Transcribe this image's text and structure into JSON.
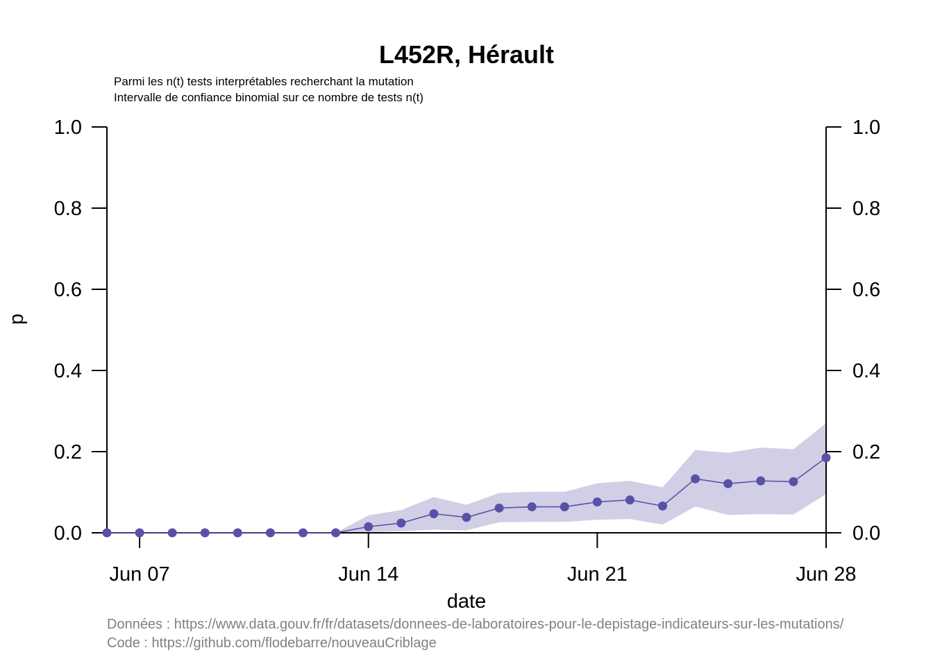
{
  "chart_data": {
    "type": "line",
    "title": "L452R, Hérault",
    "subtitle_lines": [
      "Parmi les n(t) tests interprétables recherchant la mutation",
      "Intervalle de confiance binomial sur ce nombre de tests n(t)"
    ],
    "xlabel": "date",
    "ylabel": "p",
    "ylim": [
      0,
      1
    ],
    "y_ticks": [
      "0.0",
      "0.2",
      "0.4",
      "0.6",
      "0.8",
      "1.0"
    ],
    "x_range": [
      "2021-06-06",
      "2021-06-28"
    ],
    "x_ticks": [
      {
        "date": "2021-06-07",
        "label": "Jun 07"
      },
      {
        "date": "2021-06-14",
        "label": "Jun 14"
      },
      {
        "date": "2021-06-21",
        "label": "Jun 21"
      },
      {
        "date": "2021-06-28",
        "label": "Jun 28"
      }
    ],
    "color": "#5b50a8",
    "band_color": "#d1cfe5",
    "series": [
      {
        "x": [
          "2021-06-06",
          "2021-06-07",
          "2021-06-08",
          "2021-06-09",
          "2021-06-10",
          "2021-06-11",
          "2021-06-12",
          "2021-06-13",
          "2021-06-14",
          "2021-06-15",
          "2021-06-16",
          "2021-06-17",
          "2021-06-18",
          "2021-06-19",
          "2021-06-20",
          "2021-06-21",
          "2021-06-22",
          "2021-06-23",
          "2021-06-24",
          "2021-06-25",
          "2021-06-26",
          "2021-06-27",
          "2021-06-28"
        ],
        "values": [
          0,
          0,
          0,
          0,
          0,
          0,
          0,
          0,
          0.015,
          0.024,
          0.047,
          0.038,
          0.061,
          0.064,
          0.064,
          0.076,
          0.081,
          0.066,
          0.133,
          0.121,
          0.128,
          0.126,
          0.185
        ],
        "ci_low": [
          0,
          0,
          0,
          0,
          0,
          0,
          0,
          0,
          0.002,
          0.004,
          0.008,
          0.006,
          0.026,
          0.027,
          0.027,
          0.032,
          0.034,
          0.02,
          0.065,
          0.044,
          0.046,
          0.045,
          0.095
        ],
        "ci_high": [
          0,
          0,
          0,
          0,
          0,
          0,
          0,
          0,
          0.043,
          0.056,
          0.088,
          0.069,
          0.098,
          0.101,
          0.101,
          0.122,
          0.128,
          0.112,
          0.204,
          0.197,
          0.21,
          0.206,
          0.27
        ]
      }
    ],
    "right_axis": true
  },
  "caption": {
    "data_line": "Données : https://www.data.gouv.fr/fr/datasets/donnees-de-laboratoires-pour-le-depistage-indicateurs-sur-les-mutations/",
    "code_line": "Code : https://github.com/flodebarre/nouveauCriblage"
  }
}
